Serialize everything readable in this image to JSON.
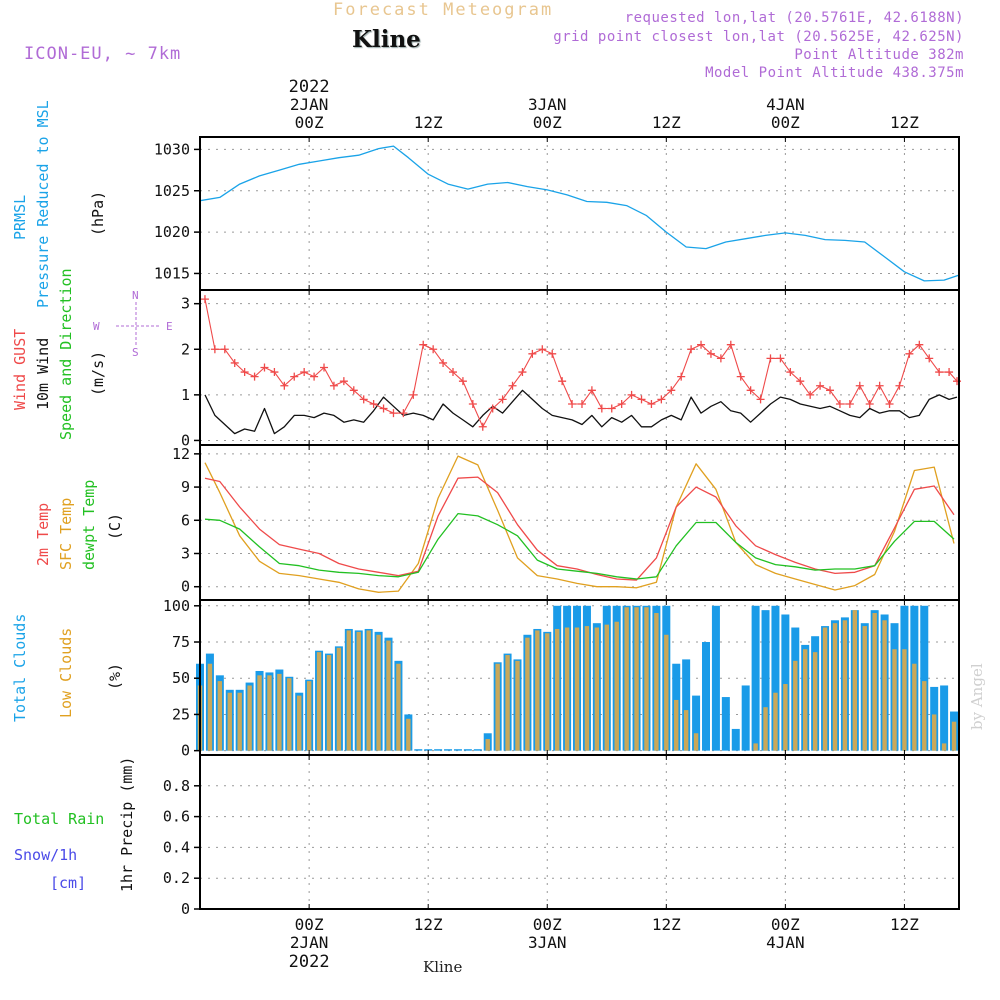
{
  "header": {
    "title": "Forecast Meteogram",
    "station": "Kline",
    "model": "ICON-EU, ~ 7km",
    "requested": "requested lon,lat (20.5761E, 42.6188N)",
    "grid_point": "grid point closest lon,lat (20.5625E, 42.625N)",
    "point_altitude": "Point Altitude 382m",
    "model_altitude": "Model Point Altitude 438.375m"
  },
  "footer_station": "Kline",
  "watermark": "by Angel",
  "compass": {
    "n": "N",
    "s": "S",
    "w": "W",
    "e": "E"
  },
  "panel_labels": {
    "pressure": {
      "name": "PRMSL",
      "desc": "Pressure Reduced to MSL",
      "unit": "(hPa)"
    },
    "wind": {
      "gust": "Wind GUST",
      "wind10": "10m Wind",
      "speed": "Speed and Direction",
      "unit": "(m/s)"
    },
    "temp": {
      "t2m": "2m Temp",
      "sfc": "SFC Temp",
      "dew": "dewpt Temp",
      "unit": "(C)"
    },
    "clouds": {
      "total": "Total Clouds",
      "low": "Low Clouds",
      "unit": "(%)"
    },
    "precip": {
      "rain": "Total  Rain",
      "snow": "Snow/1h",
      "snow_unit": "[cm]",
      "axis": "1hr Precip (mm)"
    }
  },
  "time_axis": {
    "top_labels": [
      {
        "line1": "2022",
        "line2": "2JAN",
        "line3": "00Z",
        "hour": 24
      },
      {
        "line1": "",
        "line2": "",
        "line3": "12Z",
        "hour": 36
      },
      {
        "line1": "",
        "line2": "3JAN",
        "line3": "00Z",
        "hour": 48
      },
      {
        "line1": "",
        "line2": "",
        "line3": "12Z",
        "hour": 60
      },
      {
        "line1": "",
        "line2": "4JAN",
        "line3": "00Z",
        "hour": 72
      },
      {
        "line1": "",
        "line2": "",
        "line3": "12Z",
        "hour": 84
      }
    ],
    "bottom_labels": [
      {
        "line1": "00Z",
        "line2": "2JAN",
        "line3": "2022",
        "hour": 24
      },
      {
        "line1": "12Z",
        "line2": "",
        "line3": "",
        "hour": 36
      },
      {
        "line1": "00Z",
        "line2": "3JAN",
        "line3": "",
        "hour": 48
      },
      {
        "line1": "12Z",
        "line2": "",
        "line3": "",
        "hour": 60
      },
      {
        "line1": "00Z",
        "line2": "4JAN",
        "line3": "",
        "hour": 72
      },
      {
        "line1": "12Z",
        "line2": "",
        "line3": "",
        "hour": 84
      }
    ]
  },
  "colors": {
    "pressure": "#1aa3e8",
    "gust": "#ef4a4a",
    "wind10": "#111111",
    "t2m": "#ef4a4a",
    "sfc": "#e0a020",
    "dew": "#22c022",
    "total_clouds": "#1a9be8",
    "low_clouds": "#c9a85a",
    "rain": "#22c022",
    "snow": "#4a4ae8"
  },
  "chart_data": [
    {
      "type": "line",
      "title": "PRMSL Pressure Reduced to MSL",
      "ylabel": "(hPa)",
      "ylim": [
        1013.0,
        1031.5
      ],
      "yticks": [
        1015,
        1020,
        1025,
        1030
      ],
      "xlim_hours": [
        13,
        89.5
      ],
      "x": [
        13,
        15,
        17,
        19,
        21,
        23,
        25,
        27,
        29,
        31,
        32.5,
        34,
        36,
        38,
        40,
        42,
        44,
        46,
        48,
        50,
        52,
        54,
        56,
        58,
        60,
        62,
        64,
        66,
        68,
        70,
        72,
        74,
        76,
        78,
        80,
        82,
        84,
        86,
        88,
        89.5
      ],
      "series": [
        {
          "name": "PRMSL",
          "values": [
            1023.8,
            1024.2,
            1025.8,
            1026.8,
            1027.5,
            1028.2,
            1028.6,
            1029.0,
            1029.3,
            1030.1,
            1030.4,
            1029.0,
            1027.0,
            1025.8,
            1025.2,
            1025.8,
            1026.0,
            1025.5,
            1025.1,
            1024.5,
            1023.7,
            1023.6,
            1023.2,
            1022.0,
            1020.0,
            1018.2,
            1018.0,
            1018.8,
            1019.2,
            1019.6,
            1019.9,
            1019.6,
            1019.1,
            1019.0,
            1018.8,
            1017.0,
            1015.2,
            1014.1,
            1014.2,
            1014.8
          ]
        }
      ]
    },
    {
      "type": "line",
      "title": "Wind GUST / 10m Wind Speed and Direction",
      "ylabel": "(m/s)",
      "ylim": [
        -0.1,
        3.3
      ],
      "yticks": [
        0,
        1,
        2,
        3
      ],
      "xlim_hours": [
        13,
        89.5
      ],
      "x": [
        13.5,
        14.5,
        15.5,
        16.5,
        17.5,
        18.5,
        19.5,
        20.5,
        21.5,
        22.5,
        23.5,
        24.5,
        25.5,
        26.5,
        27.5,
        28.5,
        29.5,
        30.5,
        31.5,
        32.5,
        33.5,
        34.5,
        35.5,
        36.5,
        37.5,
        38.5,
        39.5,
        40.5,
        41.5,
        42.5,
        43.5,
        44.5,
        45.5,
        46.5,
        47.5,
        48.5,
        49.5,
        50.5,
        51.5,
        52.5,
        53.5,
        54.5,
        55.5,
        56.5,
        57.5,
        58.5,
        59.5,
        60.5,
        61.5,
        62.5,
        63.5,
        64.5,
        65.5,
        66.5,
        67.5,
        68.5,
        69.5,
        70.5,
        71.5,
        72.5,
        73.5,
        74.5,
        75.5,
        76.5,
        77.5,
        78.5,
        79.5,
        80.5,
        81.5,
        82.5,
        83.5,
        84.5,
        85.5,
        86.5,
        87.5,
        88.5,
        89.3
      ],
      "series": [
        {
          "name": "Wind GUST",
          "values": [
            3.1,
            2.0,
            2.0,
            1.7,
            1.5,
            1.4,
            1.6,
            1.5,
            1.2,
            1.4,
            1.5,
            1.4,
            1.6,
            1.2,
            1.3,
            1.1,
            0.9,
            0.8,
            0.7,
            0.6,
            0.6,
            1.0,
            2.1,
            2.0,
            1.7,
            1.5,
            1.3,
            0.8,
            0.3,
            0.7,
            0.9,
            1.2,
            1.5,
            1.9,
            2.0,
            1.9,
            1.3,
            0.8,
            0.8,
            1.1,
            0.7,
            0.7,
            0.8,
            1.0,
            0.9,
            0.8,
            0.9,
            1.1,
            1.4,
            2.0,
            2.1,
            1.9,
            1.8,
            2.1,
            1.4,
            1.1,
            0.9,
            1.8,
            1.8,
            1.5,
            1.3,
            1.0,
            1.2,
            1.1,
            0.8,
            0.8,
            1.2,
            0.8,
            1.2,
            0.8,
            1.2,
            1.9,
            2.1,
            1.8,
            1.5,
            1.5,
            1.3
          ]
        },
        {
          "name": "10m Wind",
          "values": [
            1.0,
            0.55,
            0.35,
            0.15,
            0.25,
            0.2,
            0.7,
            0.15,
            0.3,
            0.55,
            0.55,
            0.5,
            0.6,
            0.55,
            0.4,
            0.45,
            0.4,
            0.65,
            0.95,
            0.75,
            0.55,
            0.6,
            0.55,
            0.45,
            0.8,
            0.6,
            0.45,
            0.3,
            0.55,
            0.75,
            0.6,
            0.85,
            1.1,
            0.9,
            0.7,
            0.55,
            0.5,
            0.45,
            0.35,
            0.55,
            0.3,
            0.5,
            0.4,
            0.55,
            0.3,
            0.3,
            0.45,
            0.55,
            0.45,
            0.95,
            0.6,
            0.75,
            0.85,
            0.65,
            0.6,
            0.4,
            0.6,
            0.8,
            0.95,
            0.9,
            0.8,
            0.75,
            0.7,
            0.75,
            0.65,
            0.55,
            0.5,
            0.7,
            0.6,
            0.65,
            0.65,
            0.5,
            0.55,
            0.9,
            1.0,
            0.9,
            0.95
          ]
        }
      ]
    },
    {
      "type": "line",
      "title": "2m Temp / SFC Temp / dewpt Temp",
      "ylabel": "(C)",
      "ylim": [
        -1.2,
        12.8
      ],
      "yticks": [
        0,
        3,
        6,
        9,
        12
      ],
      "xlim_hours": [
        13,
        89.5
      ],
      "x": [
        13.5,
        15,
        17,
        19,
        21,
        23,
        25,
        27,
        29,
        31,
        33,
        35,
        37,
        39,
        41,
        43,
        45,
        47,
        49,
        51,
        53,
        55,
        57,
        59,
        61,
        63,
        65,
        67,
        69,
        71,
        73,
        75,
        77,
        79,
        81,
        83,
        85,
        87,
        89
      ],
      "series": [
        {
          "name": "2m Temp",
          "values": [
            9.8,
            9.5,
            7.2,
            5.2,
            3.8,
            3.4,
            3.0,
            2.1,
            1.6,
            1.3,
            1.0,
            1.4,
            6.4,
            9.8,
            9.9,
            8.5,
            5.6,
            3.3,
            1.9,
            1.6,
            1.1,
            0.7,
            0.6,
            2.6,
            7.2,
            9.0,
            8.1,
            5.5,
            3.7,
            2.9,
            2.2,
            1.6,
            1.2,
            1.3,
            1.9,
            5.3,
            8.8,
            9.1,
            6.5
          ]
        },
        {
          "name": "SFC Temp",
          "values": [
            11.2,
            8.5,
            4.6,
            2.3,
            1.2,
            1.0,
            0.7,
            0.4,
            -0.2,
            -0.5,
            -0.4,
            2.1,
            8.0,
            11.8,
            11.0,
            6.9,
            2.6,
            1.0,
            0.7,
            0.3,
            0.0,
            0.0,
            -0.1,
            0.4,
            7.2,
            11.1,
            8.8,
            4.0,
            2.0,
            1.2,
            0.7,
            0.2,
            -0.3,
            0.1,
            1.1,
            5.0,
            10.5,
            10.8,
            3.9
          ]
        },
        {
          "name": "dewpt Temp",
          "values": [
            6.1,
            6.0,
            5.2,
            3.6,
            2.1,
            1.9,
            1.5,
            1.3,
            1.2,
            1.0,
            0.9,
            1.3,
            4.3,
            6.6,
            6.4,
            5.6,
            4.6,
            2.4,
            1.6,
            1.4,
            1.2,
            0.9,
            0.7,
            0.9,
            3.7,
            5.8,
            5.8,
            4.0,
            2.6,
            2.0,
            1.8,
            1.5,
            1.6,
            1.6,
            1.9,
            4.1,
            5.9,
            5.9,
            4.3
          ]
        }
      ]
    },
    {
      "type": "bar",
      "title": "Total Clouds / Low Clouds",
      "ylabel": "(%)",
      "ylim": [
        -3,
        104
      ],
      "yticks": [
        0,
        25,
        50,
        75,
        100
      ],
      "xlim_hours": [
        13,
        89.5
      ],
      "x": [
        13,
        14,
        15,
        16,
        17,
        18,
        19,
        20,
        21,
        22,
        23,
        24,
        25,
        26,
        27,
        28,
        29,
        30,
        31,
        32,
        33,
        34,
        35,
        36,
        37,
        38,
        39,
        40,
        41,
        42,
        43,
        44,
        45,
        46,
        47,
        48,
        49,
        50,
        51,
        52,
        53,
        54,
        55,
        56,
        57,
        58,
        59,
        60,
        61,
        62,
        63,
        64,
        65,
        66,
        67,
        68,
        69,
        70,
        71,
        72,
        73,
        74,
        75,
        76,
        77,
        78,
        79,
        80,
        81,
        82,
        83,
        84,
        85,
        86,
        87,
        88,
        89
      ],
      "series": [
        {
          "name": "Total Clouds",
          "values": [
            60,
            67,
            52,
            42,
            42,
            47,
            55,
            54,
            56,
            51,
            40,
            49,
            69,
            67,
            72,
            84,
            83,
            84,
            82,
            78,
            62,
            25,
            1,
            1,
            1,
            1,
            1,
            1,
            1,
            12,
            61,
            67,
            63,
            80,
            84,
            82,
            100,
            100,
            100,
            100,
            88,
            100,
            100,
            100,
            100,
            100,
            100,
            100,
            60,
            63,
            38,
            75,
            100,
            37,
            15,
            45,
            100,
            97,
            100,
            94,
            85,
            73,
            79,
            86,
            90,
            92,
            97,
            88,
            97,
            94,
            88,
            100,
            100,
            100,
            44,
            45,
            27
          ]
        },
        {
          "name": "Low Clouds",
          "values": [
            45,
            60,
            48,
            40,
            40,
            45,
            52,
            52,
            53,
            50,
            38,
            48,
            68,
            66,
            71,
            83,
            82,
            83,
            80,
            76,
            60,
            22,
            0,
            0,
            0,
            0,
            0,
            0,
            0,
            8,
            60,
            66,
            62,
            78,
            83,
            81,
            84,
            85,
            85,
            86,
            85,
            87,
            89,
            99,
            99,
            99,
            95,
            80,
            35,
            28,
            12,
            0,
            0,
            0,
            0,
            0,
            5,
            30,
            40,
            46,
            62,
            70,
            68,
            85,
            88,
            90,
            97,
            86,
            95,
            90,
            70,
            70,
            60,
            48,
            25,
            5,
            20
          ]
        }
      ]
    },
    {
      "type": "line",
      "title": "Total Rain / Snow/1h",
      "ylabel": "1hr Precip (mm)",
      "ylim": [
        0,
        1.0
      ],
      "yticks": [
        0,
        0.2,
        0.4,
        0.6,
        0.8
      ],
      "xlim_hours": [
        13,
        89.5
      ],
      "series": [
        {
          "name": "Total Rain",
          "values": [
            0,
            0,
            0,
            0,
            0,
            0,
            0,
            0,
            0,
            0,
            0,
            0,
            0,
            0,
            0,
            0,
            0,
            0,
            0,
            0,
            0,
            0,
            0,
            0,
            0,
            0,
            0,
            0,
            0,
            0,
            0,
            0,
            0,
            0,
            0,
            0,
            0,
            0,
            0,
            0,
            0,
            0,
            0,
            0,
            0,
            0,
            0,
            0,
            0,
            0,
            0,
            0,
            0,
            0,
            0,
            0,
            0,
            0,
            0,
            0,
            0,
            0,
            0,
            0,
            0,
            0,
            0,
            0,
            0,
            0,
            0,
            0,
            0,
            0,
            0,
            0,
            0
          ]
        },
        {
          "name": "Snow/1h",
          "values": [
            0,
            0,
            0,
            0,
            0,
            0,
            0,
            0,
            0,
            0,
            0,
            0,
            0,
            0,
            0,
            0,
            0,
            0,
            0,
            0,
            0,
            0,
            0,
            0,
            0,
            0,
            0,
            0,
            0,
            0,
            0,
            0,
            0,
            0,
            0,
            0,
            0,
            0,
            0,
            0,
            0,
            0,
            0,
            0,
            0,
            0,
            0,
            0,
            0,
            0,
            0,
            0,
            0,
            0,
            0,
            0,
            0,
            0,
            0,
            0,
            0,
            0,
            0,
            0,
            0,
            0,
            0,
            0,
            0,
            0,
            0,
            0,
            0,
            0,
            0,
            0,
            0
          ]
        }
      ]
    }
  ]
}
